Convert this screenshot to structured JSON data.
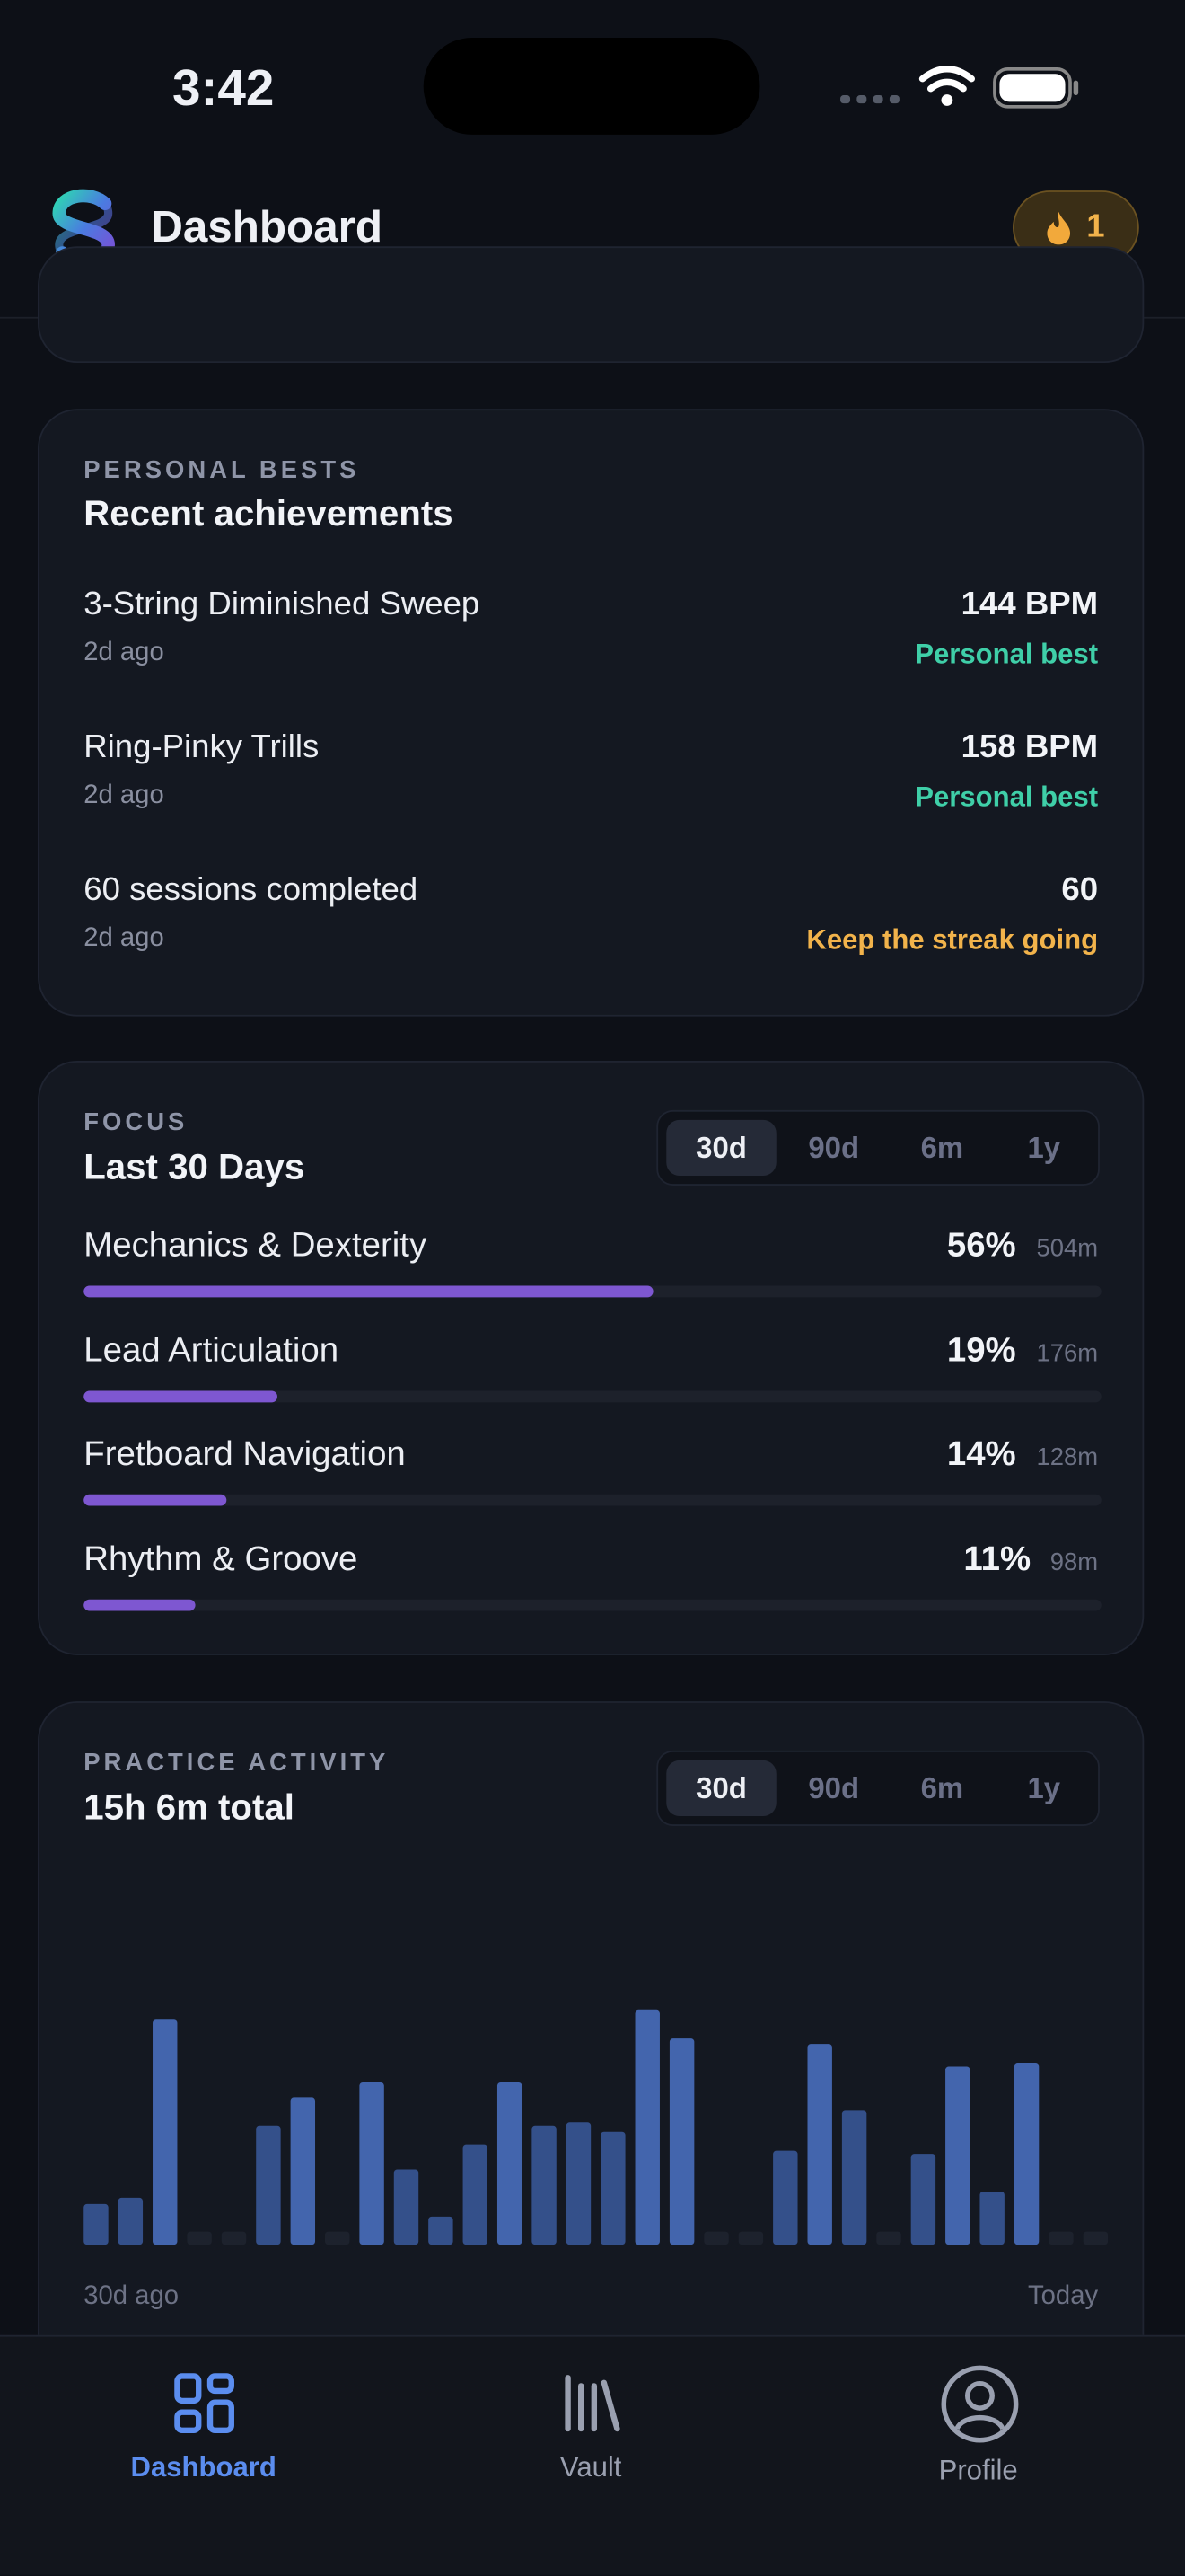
{
  "status_bar": {
    "time": "3:42"
  },
  "header": {
    "title": "Dashboard",
    "streak": "1"
  },
  "personal_bests": {
    "label": "PERSONAL BESTS",
    "title": "Recent achievements",
    "items": [
      {
        "name": "3-String Diminished Sweep",
        "when": "2d ago",
        "value": "144 BPM",
        "note": "Personal best"
      },
      {
        "name": "Ring-Pinky Trills",
        "when": "2d ago",
        "value": "158 BPM",
        "note": "Personal best"
      },
      {
        "name": "60 sessions completed",
        "when": "2d ago",
        "value": "60",
        "note": "Keep the streak going"
      }
    ]
  },
  "focus": {
    "label": "FOCUS",
    "title": "Last 30 Days",
    "ranges": [
      "30d",
      "90d",
      "6m",
      "1y"
    ],
    "items": [
      {
        "name": "Mechanics & Dexterity",
        "percent": 56,
        "percent_label": "56%",
        "minutes": "504m"
      },
      {
        "name": "Lead Articulation",
        "percent": 19,
        "percent_label": "19%",
        "minutes": "176m"
      },
      {
        "name": "Fretboard Navigation",
        "percent": 14,
        "percent_label": "14%",
        "minutes": "128m"
      },
      {
        "name": "Rhythm & Groove",
        "percent": 11,
        "percent_label": "11%",
        "minutes": "98m"
      }
    ]
  },
  "activity": {
    "label": "PRACTICE ACTIVITY",
    "title": "15h 6m total",
    "ranges": [
      "30d",
      "90d",
      "6m",
      "1y"
    ],
    "minutes": [
      13,
      15,
      72,
      0,
      0,
      38,
      47,
      0,
      52,
      24,
      9,
      32,
      52,
      38,
      39,
      36,
      75,
      66,
      0,
      0,
      30,
      64,
      43,
      0,
      29,
      57,
      17,
      58,
      0,
      0
    ],
    "start_label": "30d ago",
    "end_label": "Today"
  },
  "nav": [
    {
      "label": "Dashboard"
    },
    {
      "label": "Vault"
    },
    {
      "label": "Profile"
    }
  ]
}
